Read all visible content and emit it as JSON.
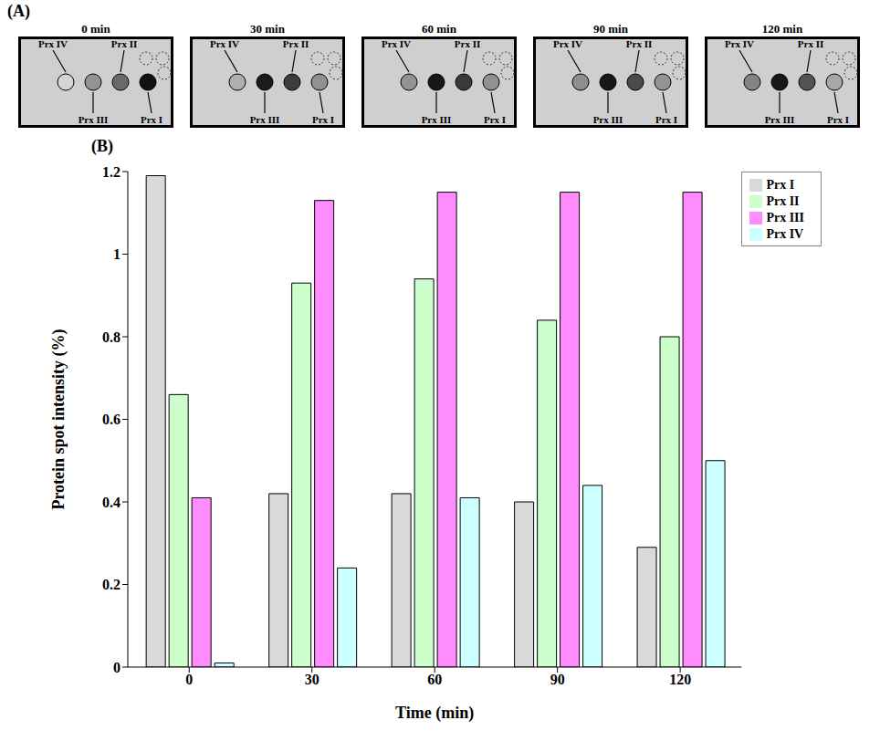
{
  "panel_labels": [
    "(A)",
    "(B)"
  ],
  "gel_titles": [
    "0 min",
    "30 min",
    "60 min",
    "90 min",
    "120 min"
  ],
  "chart_data": {
    "type": "bar",
    "x_label": "Time (min)",
    "y_label": "Protein spot intensity (%)",
    "categories": [
      "0",
      "30",
      "60",
      "90",
      "120"
    ],
    "series": [
      {
        "name": "Prx I",
        "color": "#d9d9d9",
        "values": [
          1.19,
          0.42,
          0.42,
          0.4,
          0.29
        ]
      },
      {
        "name": "Prx II",
        "color": "#ccffcc",
        "values": [
          0.66,
          0.93,
          0.94,
          0.84,
          0.8
        ]
      },
      {
        "name": "Prx III",
        "color": "#ff8cff",
        "values": [
          0.41,
          1.13,
          1.15,
          1.15,
          1.15
        ]
      },
      {
        "name": "Prx IV",
        "color": "#ccffff",
        "values": [
          0.01,
          0.24,
          0.41,
          0.44,
          0.5
        ]
      }
    ],
    "ylim": [
      0,
      1.2
    ],
    "yticks": [
      0,
      0.2,
      0.4,
      0.6,
      0.8,
      1,
      1.2
    ],
    "grid": false,
    "legend": "right"
  }
}
